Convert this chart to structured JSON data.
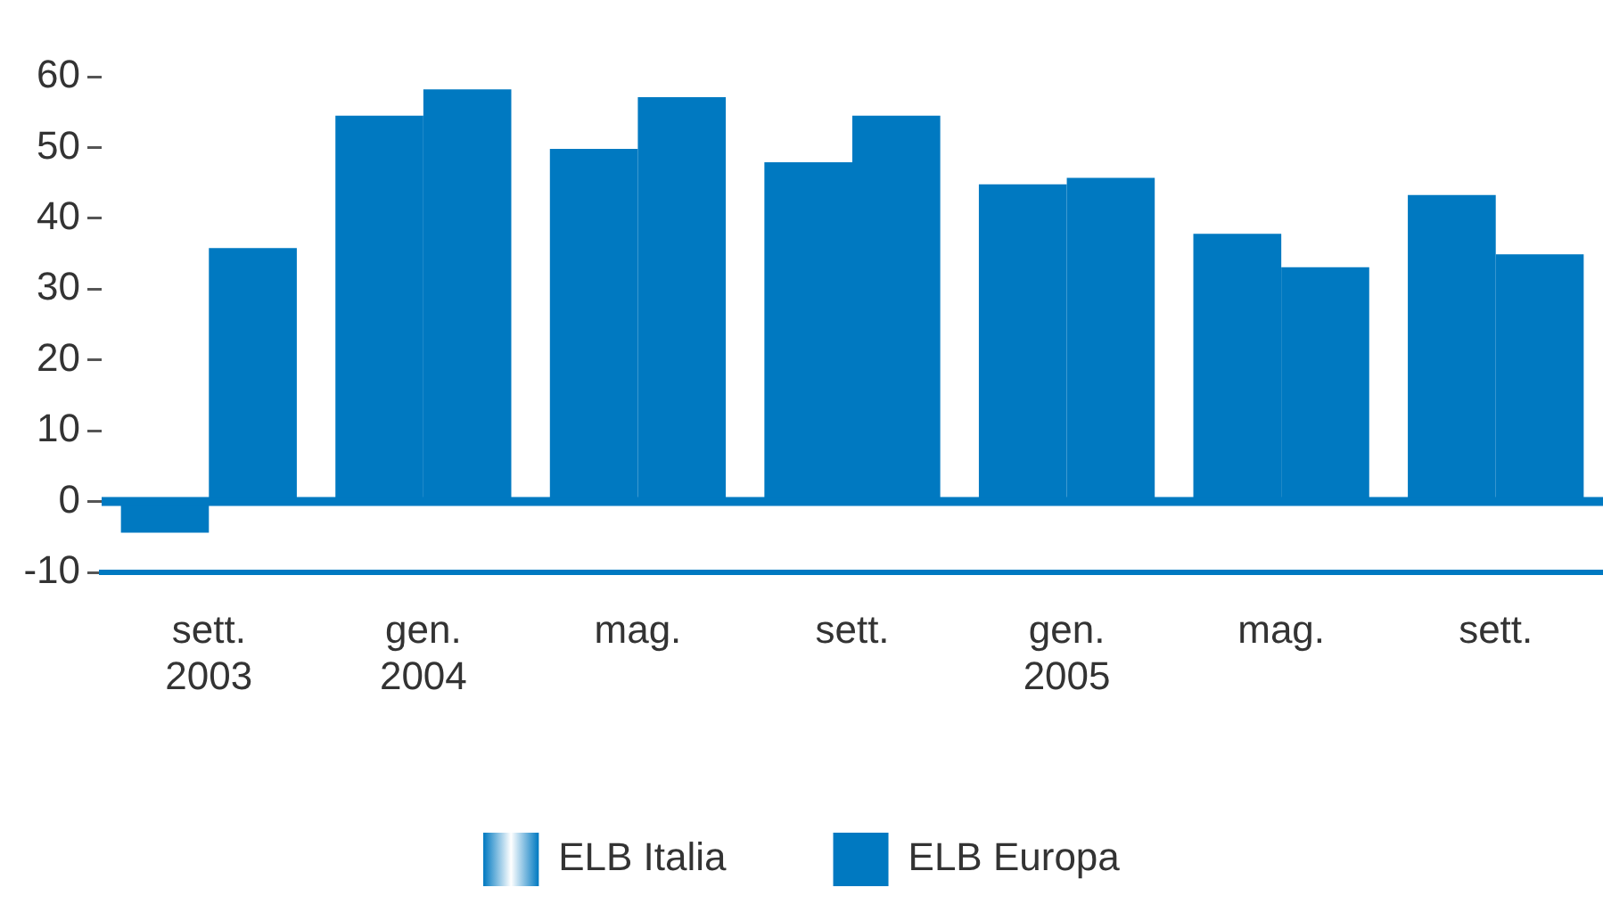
{
  "chart_data": {
    "type": "bar",
    "categories": [
      "sett. 2003",
      "gen. 2004",
      "mag.",
      "sett.",
      "gen. 2005",
      "mag.",
      "sett."
    ],
    "series": [
      {
        "name": "ELB Italia",
        "color": "#0079c1",
        "values": [
          -4.4,
          54.5,
          49.8,
          47.9,
          44.8,
          37.8,
          43.3
        ]
      },
      {
        "name": "ELB Europa",
        "color": "#0079c1",
        "values": [
          35.8,
          58.2,
          57.1,
          54.5,
          45.7,
          33.1,
          34.9
        ]
      }
    ],
    "ref_lines": [
      {
        "axis": "y",
        "value": 0,
        "color": "#0079c1"
      }
    ],
    "ylim": [
      -10,
      60
    ],
    "yticks": [
      -10,
      0,
      10,
      20,
      30,
      40,
      50,
      60
    ],
    "grid": false,
    "legend": "bottom"
  }
}
